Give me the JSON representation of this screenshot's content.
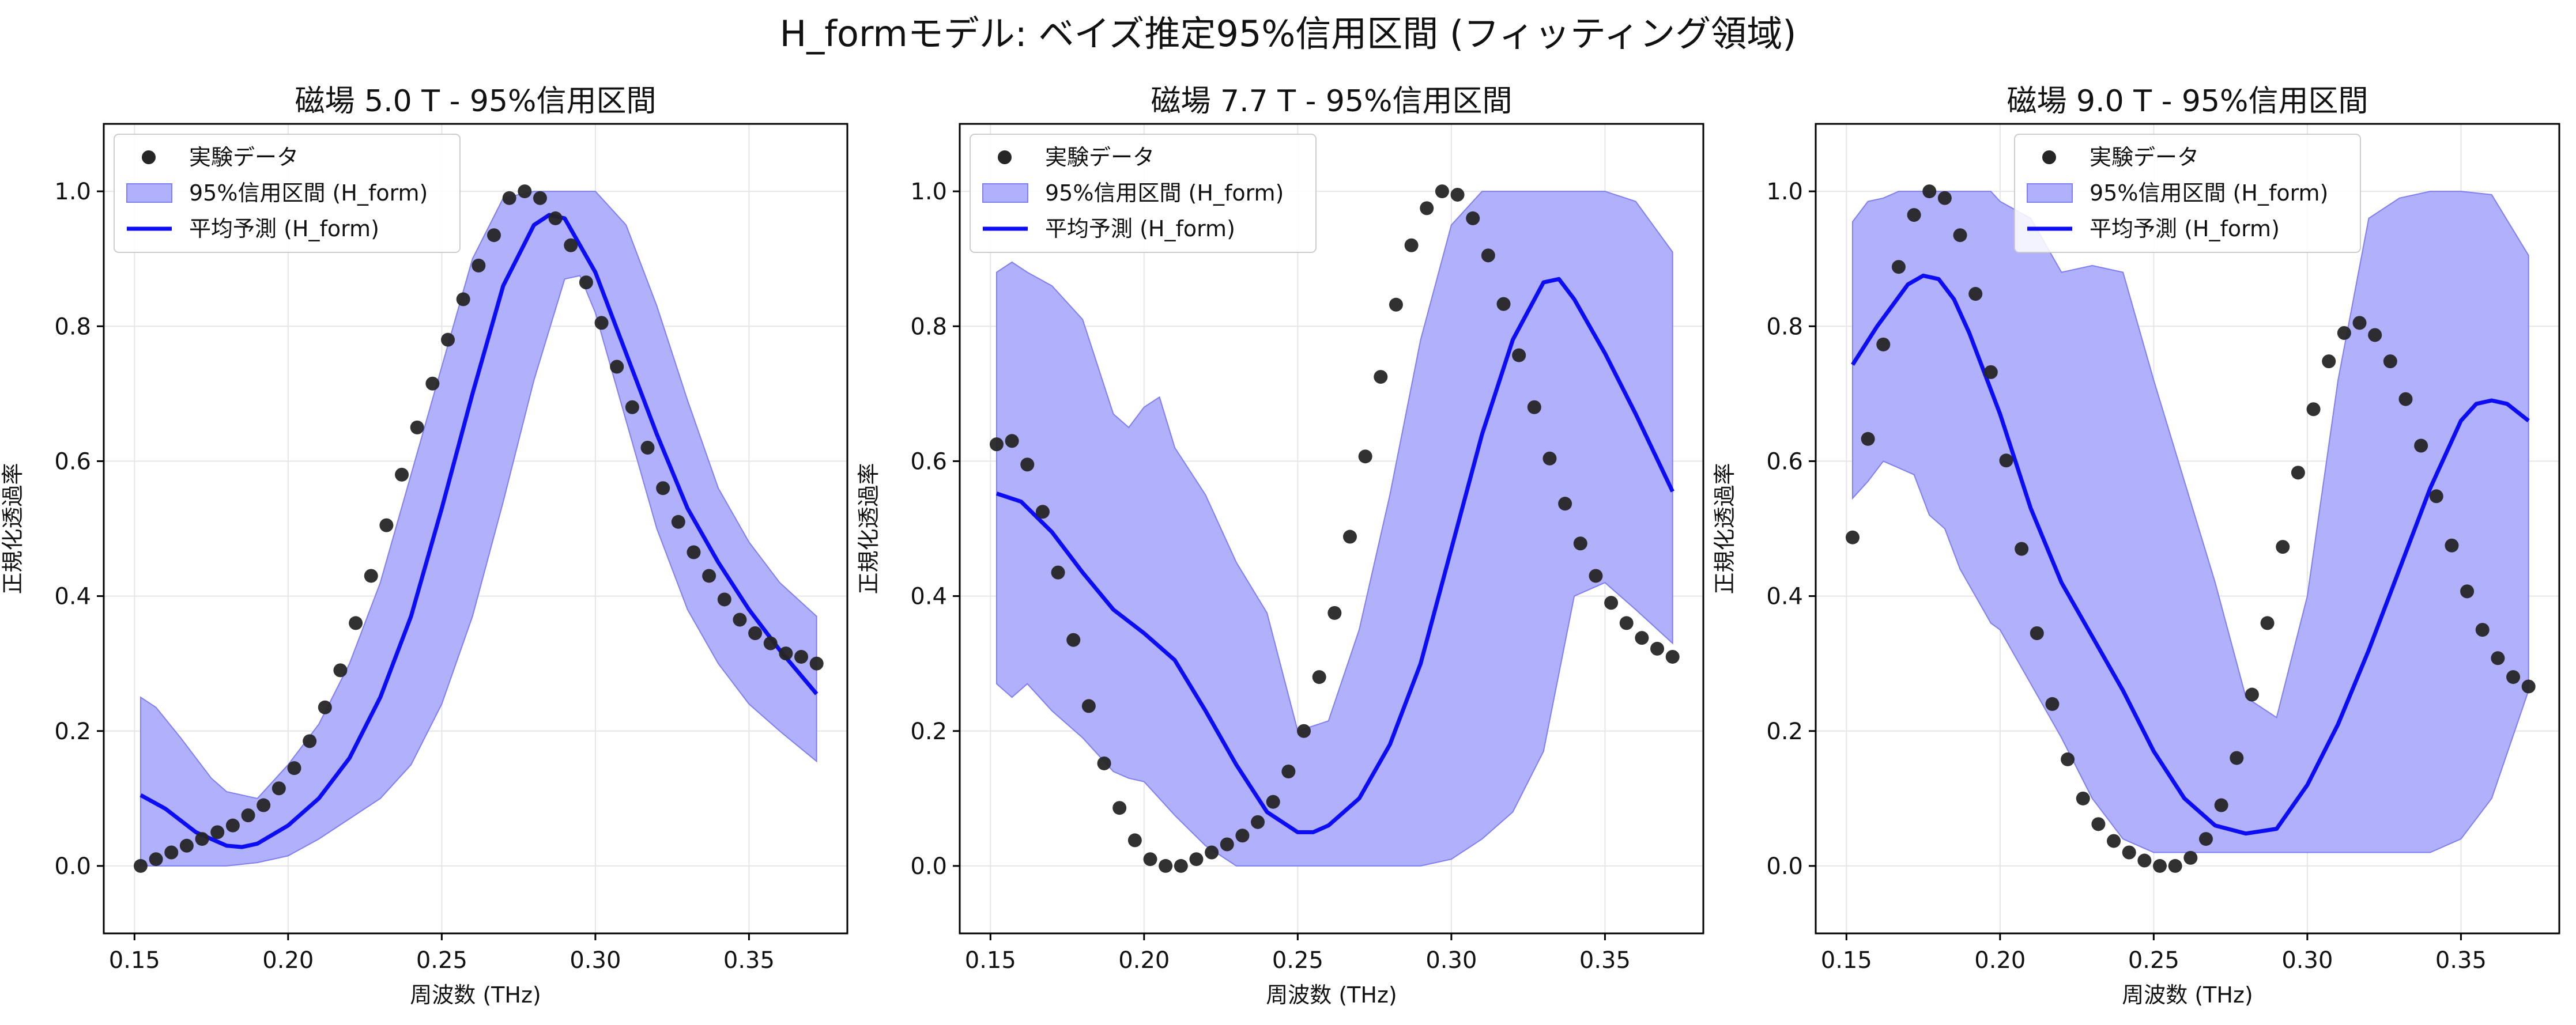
{
  "figure": {
    "title": "H_formモデル: ベイズ推定95%信用区間 (フィッティング領域)"
  },
  "colors": {
    "band_fill": "#b0b0fb",
    "band_edge": "#7f7ff5",
    "line": "#0d0df5",
    "point": "#262626",
    "grid": "#e6e6e6"
  },
  "chart_data": [
    {
      "type": "scatter",
      "title": "磁場 5.0 T - 95%信用区間",
      "xlabel": "周波数 (THz)",
      "ylabel": "正規化透過率",
      "xlim": [
        0.14,
        0.382
      ],
      "ylim": [
        -0.1,
        1.1
      ],
      "xticks": [
        "0.15",
        "0.20",
        "0.25",
        "0.30",
        "0.35"
      ],
      "yticks": [
        "0.0",
        "0.2",
        "0.4",
        "0.6",
        "0.8",
        "1.0"
      ],
      "grid": true,
      "legend_position": "top-left",
      "legend": [
        "実験データ",
        "95%信用区間 (H_form)",
        "平均予測 (H_form)"
      ],
      "series": [
        {
          "name": "実験データ",
          "kind": "points",
          "x": [
            0.152,
            0.157,
            0.162,
            0.167,
            0.172,
            0.177,
            0.182,
            0.187,
            0.192,
            0.197,
            0.202,
            0.207,
            0.212,
            0.217,
            0.222,
            0.227,
            0.232,
            0.237,
            0.242,
            0.247,
            0.252,
            0.257,
            0.262,
            0.267,
            0.272,
            0.277,
            0.282,
            0.287,
            0.292,
            0.297,
            0.302,
            0.307,
            0.312,
            0.317,
            0.322,
            0.327,
            0.332,
            0.337,
            0.342,
            0.347,
            0.352,
            0.357,
            0.362,
            0.367,
            0.372
          ],
          "y": [
            0.0,
            0.01,
            0.02,
            0.03,
            0.04,
            0.05,
            0.06,
            0.075,
            0.09,
            0.115,
            0.145,
            0.185,
            0.235,
            0.29,
            0.36,
            0.43,
            0.505,
            0.58,
            0.65,
            0.715,
            0.78,
            0.84,
            0.89,
            0.935,
            0.99,
            1.0,
            0.99,
            0.96,
            0.92,
            0.865,
            0.805,
            0.74,
            0.68,
            0.62,
            0.56,
            0.51,
            0.465,
            0.43,
            0.395,
            0.365,
            0.345,
            0.33,
            0.315,
            0.31,
            0.3
          ]
        },
        {
          "name": "平均予測 (H_form)",
          "kind": "line",
          "x": [
            0.152,
            0.16,
            0.17,
            0.18,
            0.185,
            0.19,
            0.2,
            0.21,
            0.22,
            0.23,
            0.24,
            0.25,
            0.26,
            0.27,
            0.28,
            0.285,
            0.29,
            0.3,
            0.31,
            0.32,
            0.33,
            0.34,
            0.35,
            0.36,
            0.372
          ],
          "y": [
            0.105,
            0.085,
            0.05,
            0.03,
            0.028,
            0.033,
            0.06,
            0.1,
            0.16,
            0.25,
            0.37,
            0.53,
            0.7,
            0.86,
            0.95,
            0.965,
            0.96,
            0.88,
            0.76,
            0.64,
            0.53,
            0.45,
            0.38,
            0.32,
            0.255
          ]
        },
        {
          "name": "95%信用区間 (H_form)",
          "kind": "band",
          "x": [
            0.152,
            0.157,
            0.165,
            0.175,
            0.18,
            0.19,
            0.2,
            0.21,
            0.22,
            0.23,
            0.24,
            0.25,
            0.26,
            0.27,
            0.28,
            0.29,
            0.295,
            0.3,
            0.31,
            0.32,
            0.33,
            0.34,
            0.35,
            0.36,
            0.372
          ],
          "lower": [
            0.0,
            0.0,
            0.0,
            0.0,
            0.0,
            0.005,
            0.015,
            0.04,
            0.07,
            0.1,
            0.15,
            0.24,
            0.37,
            0.54,
            0.72,
            0.87,
            0.875,
            0.82,
            0.66,
            0.5,
            0.38,
            0.3,
            0.24,
            0.2,
            0.155
          ],
          "upper": [
            0.25,
            0.235,
            0.19,
            0.13,
            0.11,
            0.1,
            0.15,
            0.21,
            0.3,
            0.42,
            0.58,
            0.74,
            0.9,
            0.99,
            1.0,
            1.0,
            1.0,
            1.0,
            0.95,
            0.83,
            0.69,
            0.56,
            0.48,
            0.42,
            0.37
          ]
        }
      ]
    },
    {
      "type": "scatter",
      "title": "磁場 7.7 T - 95%信用区間",
      "xlabel": "周波数 (THz)",
      "ylabel": "正規化透過率",
      "xlim": [
        0.14,
        0.382
      ],
      "ylim": [
        -0.1,
        1.1
      ],
      "xticks": [
        "0.15",
        "0.20",
        "0.25",
        "0.30",
        "0.35"
      ],
      "yticks": [
        "0.0",
        "0.2",
        "0.4",
        "0.6",
        "0.8",
        "1.0"
      ],
      "grid": true,
      "legend_position": "top-left",
      "legend": [
        "実験データ",
        "95%信用区間 (H_form)",
        "平均予測 (H_form)"
      ],
      "series": [
        {
          "name": "実験データ",
          "kind": "points",
          "x": [
            0.152,
            0.157,
            0.162,
            0.167,
            0.172,
            0.177,
            0.182,
            0.187,
            0.192,
            0.197,
            0.202,
            0.207,
            0.212,
            0.217,
            0.222,
            0.227,
            0.232,
            0.237,
            0.242,
            0.247,
            0.252,
            0.257,
            0.262,
            0.267,
            0.272,
            0.277,
            0.282,
            0.287,
            0.292,
            0.297,
            0.302,
            0.307,
            0.312,
            0.317,
            0.322,
            0.327,
            0.332,
            0.337,
            0.342,
            0.347,
            0.352,
            0.357,
            0.362,
            0.367,
            0.372
          ],
          "y": [
            0.625,
            0.63,
            0.595,
            0.525,
            0.435,
            0.335,
            0.237,
            0.152,
            0.086,
            0.038,
            0.01,
            0.0,
            0.0,
            0.01,
            0.02,
            0.032,
            0.045,
            0.065,
            0.095,
            0.14,
            0.2,
            0.28,
            0.375,
            0.488,
            0.607,
            0.725,
            0.832,
            0.92,
            0.975,
            1.0,
            0.995,
            0.96,
            0.905,
            0.833,
            0.757,
            0.68,
            0.604,
            0.537,
            0.478,
            0.43,
            0.39,
            0.36,
            0.338,
            0.322,
            0.31
          ]
        },
        {
          "name": "平均予測 (H_form)",
          "kind": "line",
          "x": [
            0.152,
            0.16,
            0.17,
            0.18,
            0.19,
            0.2,
            0.21,
            0.22,
            0.23,
            0.24,
            0.25,
            0.255,
            0.26,
            0.27,
            0.28,
            0.29,
            0.3,
            0.31,
            0.32,
            0.33,
            0.335,
            0.34,
            0.35,
            0.36,
            0.372
          ],
          "y": [
            0.552,
            0.54,
            0.495,
            0.435,
            0.38,
            0.345,
            0.305,
            0.23,
            0.15,
            0.08,
            0.05,
            0.05,
            0.06,
            0.1,
            0.18,
            0.3,
            0.47,
            0.64,
            0.78,
            0.865,
            0.87,
            0.84,
            0.76,
            0.67,
            0.555
          ]
        },
        {
          "name": "95%信用区間 (H_form)",
          "kind": "band",
          "x": [
            0.152,
            0.157,
            0.162,
            0.17,
            0.18,
            0.19,
            0.195,
            0.2,
            0.205,
            0.21,
            0.22,
            0.23,
            0.24,
            0.25,
            0.26,
            0.27,
            0.28,
            0.29,
            0.3,
            0.31,
            0.32,
            0.33,
            0.34,
            0.35,
            0.36,
            0.372
          ],
          "lower": [
            0.27,
            0.25,
            0.27,
            0.23,
            0.19,
            0.14,
            0.13,
            0.125,
            0.1,
            0.075,
            0.03,
            0.0,
            0.0,
            0.0,
            0.0,
            0.0,
            0.0,
            0.0,
            0.01,
            0.04,
            0.08,
            0.17,
            0.4,
            0.42,
            0.38,
            0.33
          ],
          "upper": [
            0.88,
            0.895,
            0.88,
            0.86,
            0.81,
            0.67,
            0.65,
            0.68,
            0.695,
            0.62,
            0.55,
            0.45,
            0.375,
            0.2,
            0.215,
            0.35,
            0.55,
            0.78,
            0.95,
            1.0,
            1.0,
            1.0,
            1.0,
            1.0,
            0.985,
            0.91
          ]
        }
      ]
    },
    {
      "type": "scatter",
      "title": "磁場 9.0 T - 95%信用区間",
      "xlabel": "周波数 (THz)",
      "ylabel": "正規化透過率",
      "xlim": [
        0.14,
        0.382
      ],
      "ylim": [
        -0.1,
        1.1
      ],
      "xticks": [
        "0.15",
        "0.20",
        "0.25",
        "0.30",
        "0.35"
      ],
      "yticks": [
        "0.0",
        "0.2",
        "0.4",
        "0.6",
        "0.8",
        "1.0"
      ],
      "grid": true,
      "legend_position": "top-center",
      "legend": [
        "実験データ",
        "95%信用区間 (H_form)",
        "平均予測 (H_form)"
      ],
      "series": [
        {
          "name": "実験データ",
          "kind": "points",
          "x": [
            0.152,
            0.157,
            0.162,
            0.167,
            0.172,
            0.177,
            0.182,
            0.187,
            0.192,
            0.197,
            0.202,
            0.207,
            0.212,
            0.217,
            0.222,
            0.227,
            0.232,
            0.237,
            0.242,
            0.247,
            0.252,
            0.257,
            0.262,
            0.267,
            0.272,
            0.277,
            0.282,
            0.287,
            0.292,
            0.297,
            0.302,
            0.307,
            0.312,
            0.317,
            0.322,
            0.327,
            0.332,
            0.337,
            0.342,
            0.347,
            0.352,
            0.357,
            0.362,
            0.367,
            0.372
          ],
          "y": [
            0.487,
            0.633,
            0.773,
            0.888,
            0.965,
            1.0,
            0.99,
            0.935,
            0.848,
            0.732,
            0.601,
            0.47,
            0.345,
            0.24,
            0.158,
            0.1,
            0.062,
            0.037,
            0.02,
            0.008,
            0.0,
            0.0,
            0.012,
            0.04,
            0.09,
            0.16,
            0.254,
            0.36,
            0.473,
            0.583,
            0.677,
            0.748,
            0.79,
            0.805,
            0.787,
            0.748,
            0.692,
            0.623,
            0.548,
            0.475,
            0.407,
            0.35,
            0.308,
            0.28,
            0.266
          ]
        },
        {
          "name": "平均予測 (H_form)",
          "kind": "line",
          "x": [
            0.152,
            0.16,
            0.17,
            0.175,
            0.18,
            0.185,
            0.19,
            0.2,
            0.21,
            0.22,
            0.23,
            0.24,
            0.25,
            0.26,
            0.27,
            0.28,
            0.29,
            0.3,
            0.31,
            0.32,
            0.33,
            0.34,
            0.35,
            0.355,
            0.36,
            0.365,
            0.372
          ],
          "y": [
            0.743,
            0.8,
            0.862,
            0.875,
            0.87,
            0.84,
            0.79,
            0.67,
            0.53,
            0.42,
            0.34,
            0.26,
            0.17,
            0.1,
            0.06,
            0.048,
            0.055,
            0.12,
            0.21,
            0.32,
            0.44,
            0.56,
            0.66,
            0.685,
            0.69,
            0.685,
            0.66
          ]
        },
        {
          "name": "95%信用区間 (H_form)",
          "kind": "band",
          "x": [
            0.152,
            0.157,
            0.162,
            0.167,
            0.172,
            0.177,
            0.182,
            0.187,
            0.192,
            0.197,
            0.2,
            0.21,
            0.22,
            0.23,
            0.24,
            0.25,
            0.26,
            0.27,
            0.28,
            0.29,
            0.3,
            0.31,
            0.32,
            0.33,
            0.34,
            0.35,
            0.36,
            0.372
          ],
          "lower": [
            0.545,
            0.57,
            0.6,
            0.59,
            0.58,
            0.52,
            0.5,
            0.44,
            0.4,
            0.36,
            0.35,
            0.27,
            0.19,
            0.1,
            0.04,
            0.02,
            0.02,
            0.02,
            0.02,
            0.02,
            0.02,
            0.02,
            0.02,
            0.02,
            0.02,
            0.04,
            0.1,
            0.26
          ],
          "upper": [
            0.955,
            0.985,
            0.99,
            1.0,
            1.0,
            1.0,
            1.0,
            1.0,
            1.0,
            1.0,
            0.985,
            0.96,
            0.88,
            0.89,
            0.88,
            0.72,
            0.57,
            0.42,
            0.25,
            0.22,
            0.4,
            0.72,
            0.96,
            0.99,
            1.0,
            1.0,
            0.995,
            0.905
          ]
        }
      ]
    }
  ]
}
